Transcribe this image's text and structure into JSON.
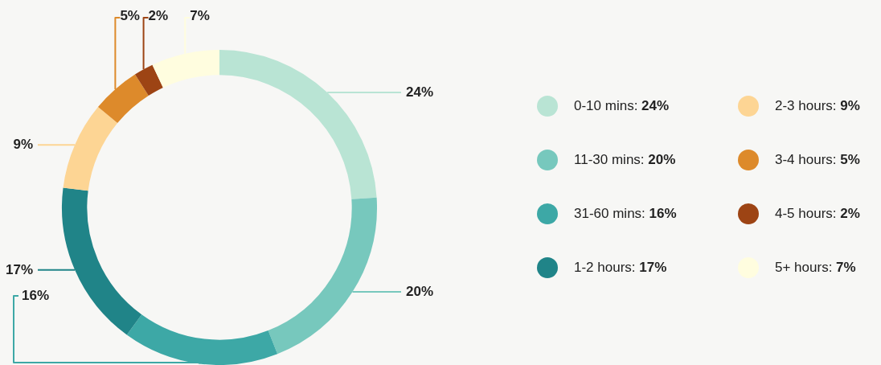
{
  "chart_data": {
    "type": "donut",
    "categories": [
      "0-10 mins",
      "11-30 mins",
      "31-60 mins",
      "1-2 hours",
      "2-3 hours",
      "3-4 hours",
      "4-5 hours",
      "5+ hours"
    ],
    "value_labels": [
      "24%",
      "20%",
      "16%",
      "17%",
      "9%",
      "5%",
      "2%",
      "7%"
    ],
    "values": [
      24,
      20,
      16,
      17,
      9,
      5,
      2,
      7
    ],
    "colors": [
      "#b9e4d4",
      "#77c8bd",
      "#3da8a6",
      "#208488",
      "#fdd594",
      "#dd8a2b",
      "#9d4414",
      "#fffddf"
    ],
    "legend": "right"
  }
}
